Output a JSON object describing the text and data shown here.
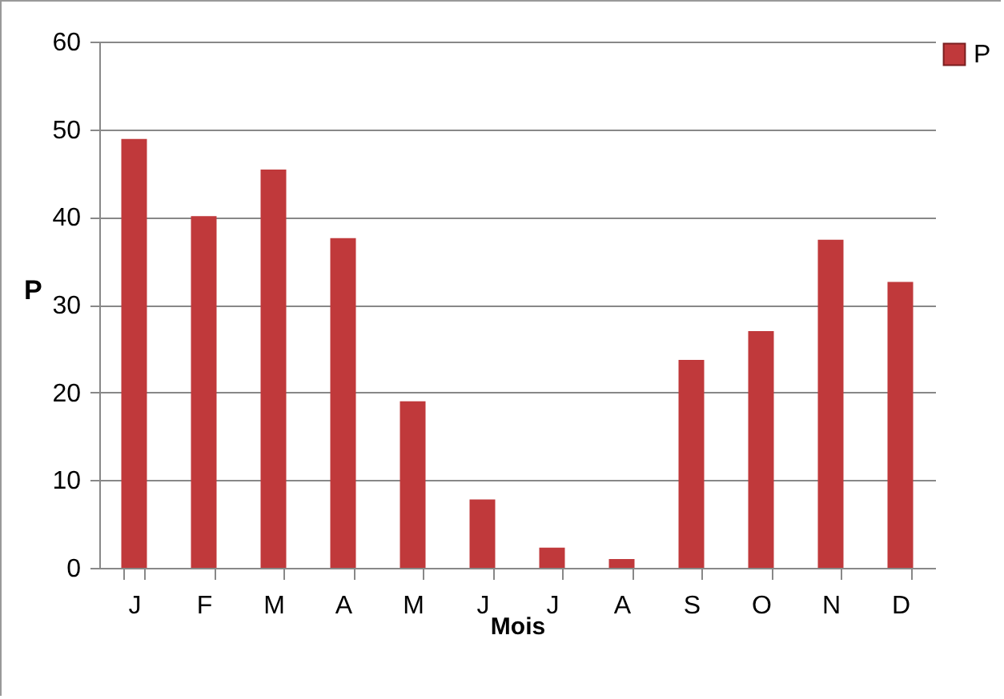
{
  "chart_data": {
    "type": "bar",
    "xlabel": "Mois",
    "ylabel": "P",
    "categories": [
      "J",
      "F",
      "M",
      "A",
      "M",
      "J",
      "J",
      "A",
      "S",
      "O",
      "N",
      "D"
    ],
    "series": [
      {
        "name": "P",
        "color": "#c0393b",
        "values": [
          48.9,
          40.1,
          45.4,
          37.6,
          19.0,
          7.8,
          2.3,
          1.0,
          23.7,
          27.0,
          37.4,
          32.6
        ]
      }
    ],
    "ylim": [
      0,
      60
    ],
    "yticks": [
      0,
      10,
      20,
      30,
      40,
      50,
      60
    ],
    "grid": "y",
    "legend": "right"
  }
}
